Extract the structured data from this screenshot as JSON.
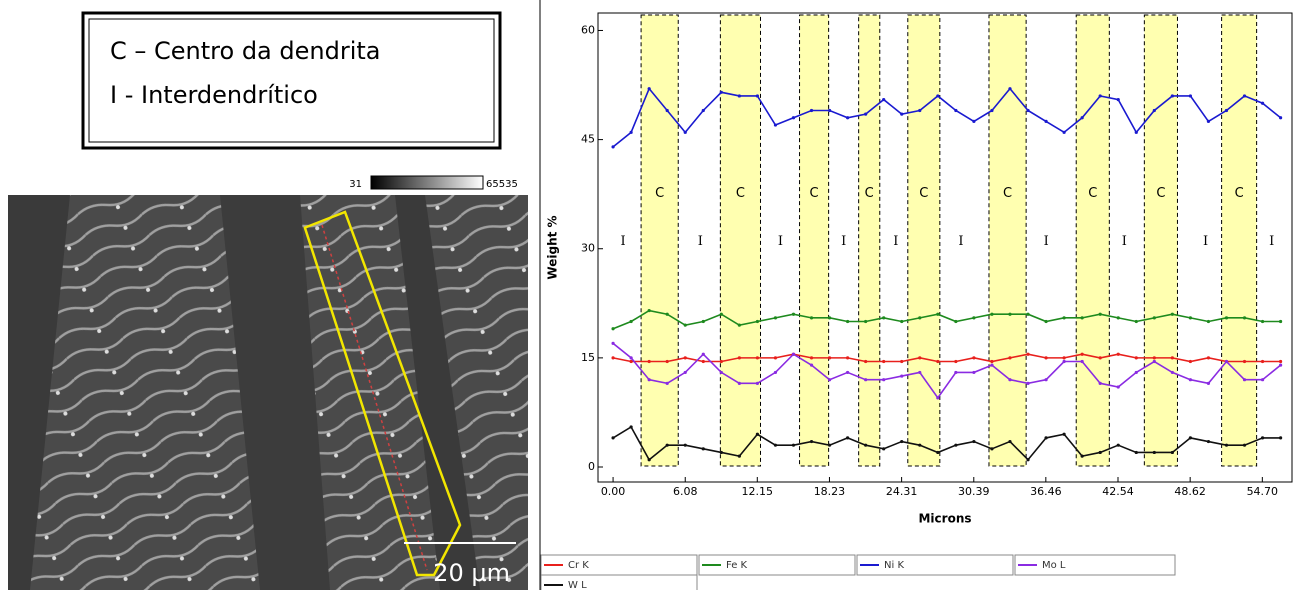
{
  "legend_box": {
    "lines": [
      "C – Centro da dendrita",
      "I - Interdendrítico"
    ]
  },
  "colorbar": {
    "min": "31",
    "max": "65535"
  },
  "scale_bar": "20 µm",
  "chart_data": {
    "type": "line",
    "x_label": "Microns",
    "y_label": "Weight %",
    "x": [
      0,
      1.52,
      3.04,
      4.56,
      6.08,
      7.6,
      9.12,
      10.64,
      12.16,
      13.68,
      15.2,
      16.72,
      18.24,
      19.76,
      21.28,
      22.8,
      24.32,
      25.84,
      27.36,
      28.88,
      30.4,
      31.92,
      33.44,
      34.96,
      36.48,
      38,
      39.52,
      41.04,
      42.56,
      44.08,
      45.6,
      47.12,
      48.64,
      50.16,
      51.68,
      53.2,
      54.72,
      56.24
    ],
    "xlim": [
      -1.27,
      57.2
    ],
    "ylim": [
      -2.06,
      62.4
    ],
    "xticks": [
      {
        "value": 0,
        "label": "0.00"
      },
      6.08,
      12.15,
      18.23,
      24.31,
      30.39,
      36.46,
      42.54,
      48.62,
      {
        "value": 54.7,
        "label": "54.70"
      }
    ],
    "yticks": [
      0,
      15,
      30,
      45,
      60
    ],
    "series": [
      {
        "name": "Cr K",
        "color": "#e8201c",
        "values": [
          15,
          14.5,
          14.5,
          14.5,
          15,
          14.5,
          14.5,
          15,
          15,
          15,
          15.5,
          15,
          15,
          15,
          14.5,
          14.5,
          14.5,
          15,
          14.5,
          14.5,
          15,
          14.5,
          15,
          15.5,
          15,
          15,
          15.5,
          15,
          15.5,
          15,
          15,
          15,
          14.5,
          15,
          14.5,
          14.5,
          14.5,
          14.5
        ]
      },
      {
        "name": "Fe K",
        "color": "#1e8a1e",
        "values": [
          19,
          20,
          21.5,
          21,
          19.5,
          20,
          21,
          19.5,
          20,
          20.5,
          21,
          20.5,
          20.5,
          20,
          20,
          20.5,
          20,
          20.5,
          21,
          20,
          20.5,
          21,
          21,
          21,
          20,
          20.5,
          20.5,
          21,
          20.5,
          20,
          20.5,
          21,
          20.5,
          20,
          20.5,
          20.5,
          20,
          20
        ]
      },
      {
        "name": "Ni K",
        "color": "#1a1ad0",
        "values": [
          44,
          46,
          52,
          49,
          46,
          49,
          51.5,
          51,
          51,
          47,
          48,
          49,
          49,
          48,
          48.5,
          50.5,
          48.5,
          49,
          51,
          49,
          47.5,
          49,
          52,
          49,
          47.5,
          46,
          48,
          51,
          50.5,
          46,
          49,
          51,
          51,
          47.5,
          49,
          51,
          50,
          48
        ]
      },
      {
        "name": "Mo L",
        "color": "#8a2be2",
        "values": [
          17,
          15,
          12,
          11.5,
          13,
          15.5,
          13,
          11.5,
          11.5,
          13,
          15.5,
          14,
          12,
          13,
          12,
          12,
          12.5,
          13,
          9.5,
          13,
          13,
          14,
          12,
          11.5,
          12,
          14.5,
          14.5,
          11.5,
          11,
          13,
          14.5,
          13,
          12,
          11.5,
          14.5,
          12,
          12,
          14
        ]
      },
      {
        "name": "W L",
        "color": "#111111",
        "values": [
          4,
          5.5,
          1,
          3,
          3,
          2.5,
          2,
          1.5,
          4.5,
          3,
          3,
          3.5,
          3,
          4,
          3,
          2.5,
          3.5,
          3,
          2,
          3,
          3.5,
          2.5,
          3.5,
          1,
          4,
          4.5,
          1.5,
          2,
          3,
          2,
          2,
          2,
          4,
          3.5,
          3,
          3,
          4,
          4
        ]
      }
    ],
    "regions": [
      {
        "label": "C",
        "x": [
          2.36,
          5.49
        ]
      },
      {
        "label": "C",
        "x": [
          9.04,
          12.42
        ]
      },
      {
        "label": "C",
        "x": [
          15.71,
          18.16
        ]
      },
      {
        "label": "C",
        "x": [
          20.69,
          22.47
        ]
      },
      {
        "label": "C",
        "x": [
          24.83,
          27.53
        ]
      },
      {
        "label": "C",
        "x": [
          31.67,
          34.8
        ]
      },
      {
        "label": "C",
        "x": [
          39.02,
          41.81
        ]
      },
      {
        "label": "C",
        "x": [
          44.76,
          47.55
        ]
      },
      {
        "label": "C",
        "x": [
          51.27,
          54.22
        ]
      }
    ],
    "region_color": "#ffffb0",
    "annotations": [
      {
        "text": "I",
        "x": 0.84,
        "y": 31
      },
      {
        "text": "I",
        "x": 7.35,
        "y": 31
      },
      {
        "text": "I",
        "x": 14.1,
        "y": 31
      },
      {
        "text": "I",
        "x": 19.43,
        "y": 31
      },
      {
        "text": "I",
        "x": 23.82,
        "y": 31
      },
      {
        "text": "I",
        "x": 29.31,
        "y": 31
      },
      {
        "text": "I",
        "x": 36.49,
        "y": 31
      },
      {
        "text": "I",
        "x": 43.07,
        "y": 31
      },
      {
        "text": "I",
        "x": 49.92,
        "y": 31
      },
      {
        "text": "I",
        "x": 55.49,
        "y": 31
      }
    ]
  }
}
